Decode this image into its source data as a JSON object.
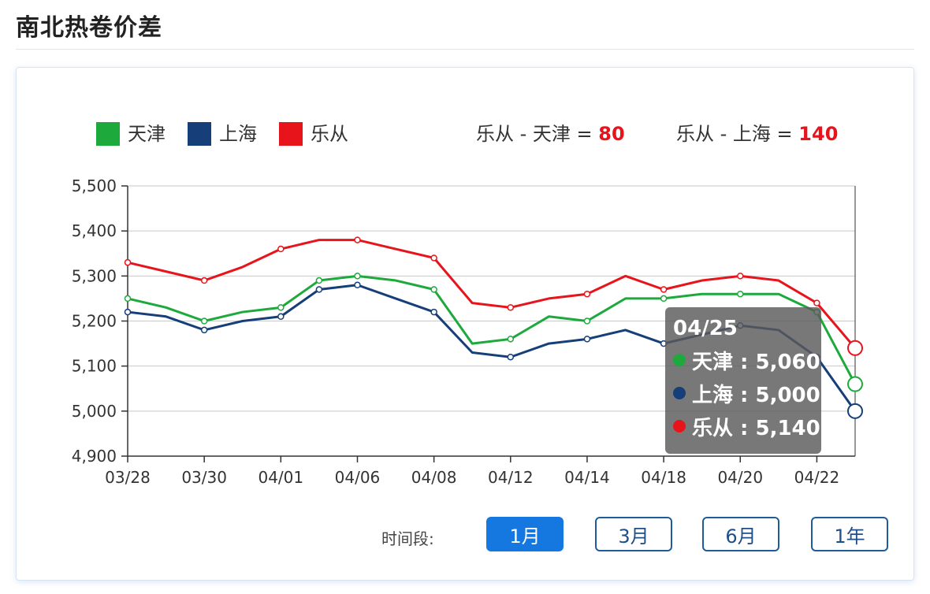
{
  "page": {
    "title": "南北热卷价差"
  },
  "legend": [
    {
      "label": "天津",
      "color": "#1ea93c"
    },
    {
      "label": "上海",
      "color": "#163f7a"
    },
    {
      "label": "乐从",
      "color": "#e8141c"
    }
  ],
  "spreads": [
    {
      "label": "乐从 - 天津 =",
      "value": "80"
    },
    {
      "label": "乐从 - 上海 =",
      "value": "140"
    }
  ],
  "tooltip": {
    "date": "04/25",
    "rows": [
      {
        "text": "天津 : 5,060",
        "color": "#1ea93c"
      },
      {
        "text": "上海 : 5,000",
        "color": "#163f7a"
      },
      {
        "text": "乐从 : 5,140",
        "color": "#e8141c"
      }
    ]
  },
  "period": {
    "label": "时间段:",
    "options": [
      "1月",
      "3月",
      "6月",
      "1年"
    ],
    "selected": "1月"
  },
  "chart_data": {
    "type": "line",
    "x_tick_labels": [
      "03/28",
      "03/30",
      "04/01",
      "04/06",
      "04/08",
      "04/12",
      "04/14",
      "04/18",
      "04/20",
      "04/22"
    ],
    "y_tick_labels": [
      "4,900",
      "5,000",
      "5,100",
      "5,200",
      "5,300",
      "5,400",
      "5,500"
    ],
    "ylim": [
      4900,
      5500
    ],
    "grid": true,
    "legend_position": "top-left",
    "series": [
      {
        "name": "天津",
        "color": "#1ea93c",
        "values": [
          5250,
          5230,
          5200,
          5220,
          5230,
          5290,
          5300,
          5290,
          5270,
          5150,
          5160,
          5210,
          5200,
          5250,
          5250,
          5260,
          5260,
          5260,
          5220,
          5060
        ]
      },
      {
        "name": "上海",
        "color": "#163f7a",
        "values": [
          5220,
          5210,
          5180,
          5200,
          5210,
          5270,
          5280,
          5250,
          5220,
          5130,
          5120,
          5150,
          5160,
          5180,
          5150,
          5170,
          5190,
          5180,
          5120,
          5000
        ]
      },
      {
        "name": "乐从",
        "color": "#e8141c",
        "values": [
          5330,
          5310,
          5290,
          5320,
          5360,
          5380,
          5380,
          5360,
          5340,
          5240,
          5230,
          5250,
          5260,
          5300,
          5270,
          5290,
          5300,
          5290,
          5240,
          5140
        ]
      }
    ]
  }
}
